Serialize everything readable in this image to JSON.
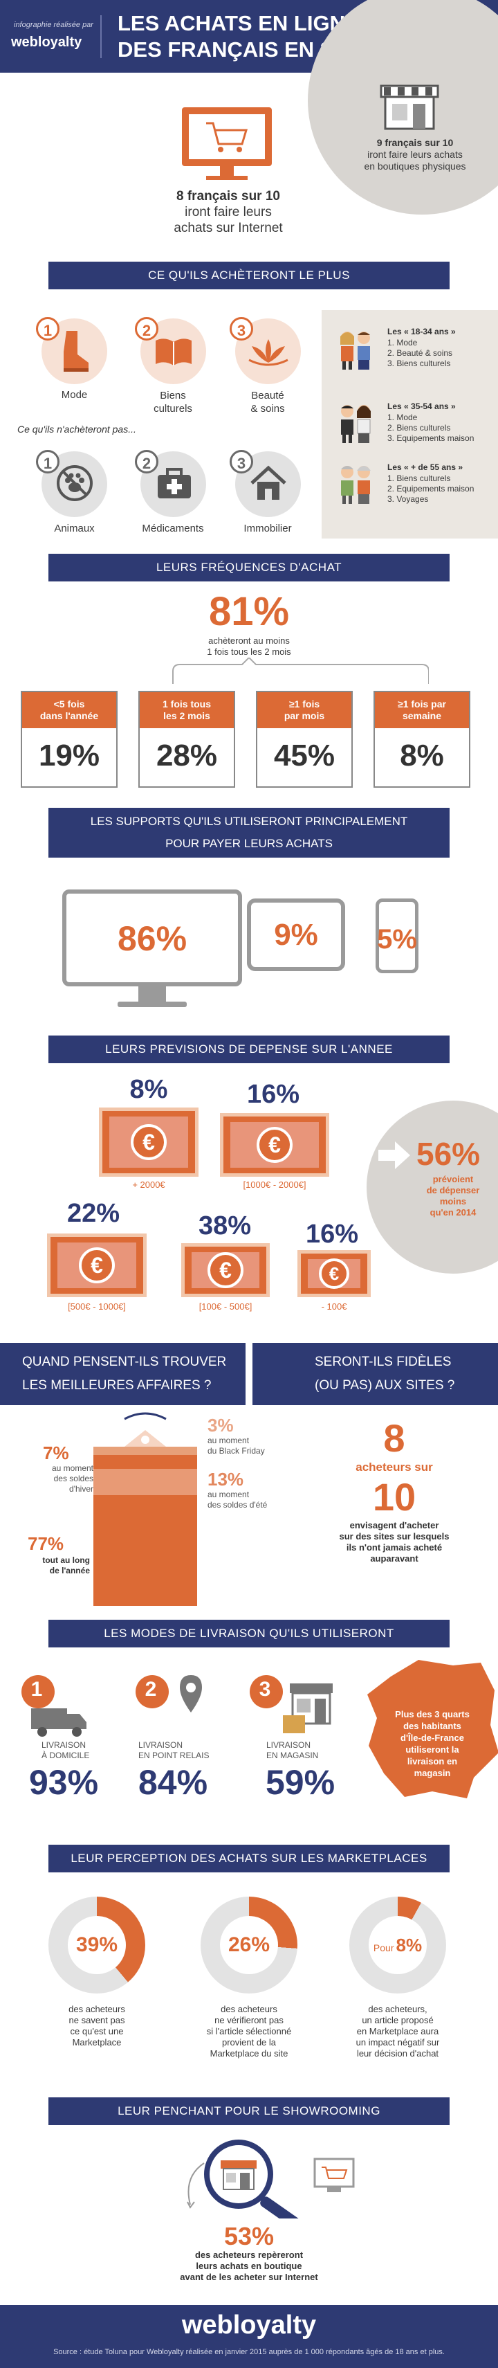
{
  "header": {
    "tagline": "infographie réalisée par",
    "brand": "webloyalty",
    "title_line1": "LES ACHATS EN LIGNE",
    "title_line2": "DES FRANÇAIS EN 2015",
    "internet_stat": "8 français sur 10",
    "internet_line2": "iront faire leurs",
    "internet_line3": "achats sur Internet",
    "store_stat": "9 français sur 10",
    "store_line2": "iront faire leurs achats",
    "store_line3": "en boutiques physiques"
  },
  "buy_section": {
    "title": "CE QU'ILS ACHÈTERONT LE PLUS",
    "items": [
      {
        "num": "1",
        "label": "Mode"
      },
      {
        "num": "2",
        "label": "Biens",
        "label2": "culturels"
      },
      {
        "num": "3",
        "label": "Beauté",
        "label2": "& soins"
      }
    ],
    "not_buy_title": "Ce qu'ils n'achèteront pas...",
    "not_items": [
      {
        "num": "1",
        "label": "Animaux"
      },
      {
        "num": "2",
        "label": "Médicaments"
      },
      {
        "num": "3",
        "label": "Immobilier"
      }
    ],
    "age_groups": [
      {
        "title": "Les « 18-34 ans »",
        "l1": "1. Mode",
        "l2": "2. Beauté & soins",
        "l3": "3. Biens culturels"
      },
      {
        "title": "Les « 35-54 ans »",
        "l1": "1. Mode",
        "l2": "2. Biens culturels",
        "l3": "3. Equipements maison"
      },
      {
        "title": "Les « + de 55 ans »",
        "l1": "1. Biens culturels",
        "l2": "2. Equipements maison",
        "l3": "3. Voyages"
      }
    ]
  },
  "frequency": {
    "title": "LEURS FRÉQUENCES D'ACHAT",
    "big": "81%",
    "big_line1": "achèteront au moins",
    "big_line2": "1 fois tous les 2 mois",
    "cards": [
      {
        "l1": "<5 fois",
        "l2": "dans l'année",
        "value": "19%"
      },
      {
        "l1": "1 fois tous",
        "l2": "les 2 mois",
        "value": "28%"
      },
      {
        "l1": "≥1 fois",
        "l2": "par mois",
        "value": "45%"
      },
      {
        "l1": "≥1 fois par",
        "l2": "semaine",
        "value": "8%"
      }
    ]
  },
  "devices": {
    "title_line1": "LES SUPPORTS QU'ILS UTILISERONT PRINCIPALEMENT",
    "title_line2": "POUR PAYER LEURS ACHATS",
    "desktop": "86%",
    "tablet": "9%",
    "phone": "5%"
  },
  "spending": {
    "title": "LEURS PREVISIONS DE DEPENSE SUR L'ANNEE",
    "bills": [
      {
        "pct": "8%",
        "label": "+ 2000€"
      },
      {
        "pct": "16%",
        "label": "[1000€ - 2000€]"
      },
      {
        "pct": "22%",
        "label": "[500€ - 1000€]"
      },
      {
        "pct": "38%",
        "label": "[100€ - 500€]"
      },
      {
        "pct": "16%",
        "label": "- 100€"
      }
    ],
    "coin": "€",
    "less_pct": "56%",
    "less_l1": "prévoient",
    "less_l2": "de dépenser",
    "less_l3": "moins",
    "less_l4": "qu'en 2014"
  },
  "deals": {
    "title_l1": "QUAND PENSENT-ILS TROUVER",
    "title_l2": "LES MEILLEURES AFFAIRES ?",
    "winter_pct": "7%",
    "winter_l1": "au moment",
    "winter_l2": "des soldes",
    "winter_l3": "d'hiver",
    "bf_pct": "3%",
    "bf_l1": "au moment",
    "bf_l2": "du Black Friday",
    "summer_pct": "13%",
    "summer_l1": "au moment",
    "summer_l2": "des soldes d'été",
    "year_pct": "77%",
    "year_l1": "tout au long",
    "year_l2": "de l'année"
  },
  "loyalty": {
    "title_l1": "SERONT-ILS FIDÈLES",
    "title_l2": "(OU PAS) AUX SITES ?",
    "num": "8",
    "l1": "acheteurs sur",
    "num2": "10",
    "t1": "envisagent d'acheter",
    "t2": "sur des sites sur lesquels",
    "t3": "ils n'ont jamais acheté",
    "t4": "auparavant"
  },
  "delivery": {
    "title": "LES MODES DE LIVRAISON QU'ILS UTILISERONT",
    "modes": [
      {
        "num": "1",
        "l1": "LIVRAISON",
        "l2": "À DOMICILE",
        "pct": "93%"
      },
      {
        "num": "2",
        "l1": "LIVRAISON",
        "l2": "EN POINT RELAIS",
        "pct": "84%"
      },
      {
        "num": "3",
        "l1": "LIVRAISON",
        "l2": "EN MAGASIN",
        "pct": "59%"
      }
    ],
    "idf_l1": "Plus des 3 quarts",
    "idf_l2": "des habitants",
    "idf_l3": "d'Île-de-France",
    "idf_l4": "utiliseront la",
    "idf_l5": "livraison en",
    "idf_l6": "magasin"
  },
  "marketplace": {
    "title": "LEUR PERCEPTION DES ACHATS SUR LES MARKETPLACES",
    "items": [
      {
        "pct": "39%",
        "fraction": 0.39,
        "l1": "des acheteurs",
        "l2": "ne savent pas",
        "l3": "ce qu'est une",
        "l4": "Marketplace"
      },
      {
        "pct": "26%",
        "fraction": 0.26,
        "l1": "des acheteurs",
        "l2": "ne vérifieront pas",
        "l3": "si l'article sélectionné",
        "l4": "provient de la",
        "l5": "Marketplace du site"
      },
      {
        "pct": "8%",
        "prefix": "Pour",
        "fraction": 0.08,
        "l1": "des acheteurs,",
        "l2": "un article proposé",
        "l3": "en Marketplace aura",
        "l4": "un impact négatif sur",
        "l5": "leur décision d'achat"
      }
    ]
  },
  "showrooming": {
    "title": "LEUR PENCHANT POUR LE SHOWROOMING",
    "pct": "53%",
    "l1": "des acheteurs repèreront",
    "l2": "leurs achats en boutique",
    "l3": "avant de les acheter sur Internet"
  },
  "footer": {
    "brand": "webloyalty",
    "source": "Source : étude Toluna pour Webloyalty réalisée en janvier 2015 auprès de 1 000 répondants âgés de 18 ans et plus."
  },
  "colors": {
    "navy": "#2e3a73",
    "orange": "#dc6a35",
    "gray": "#ebe7e1"
  }
}
